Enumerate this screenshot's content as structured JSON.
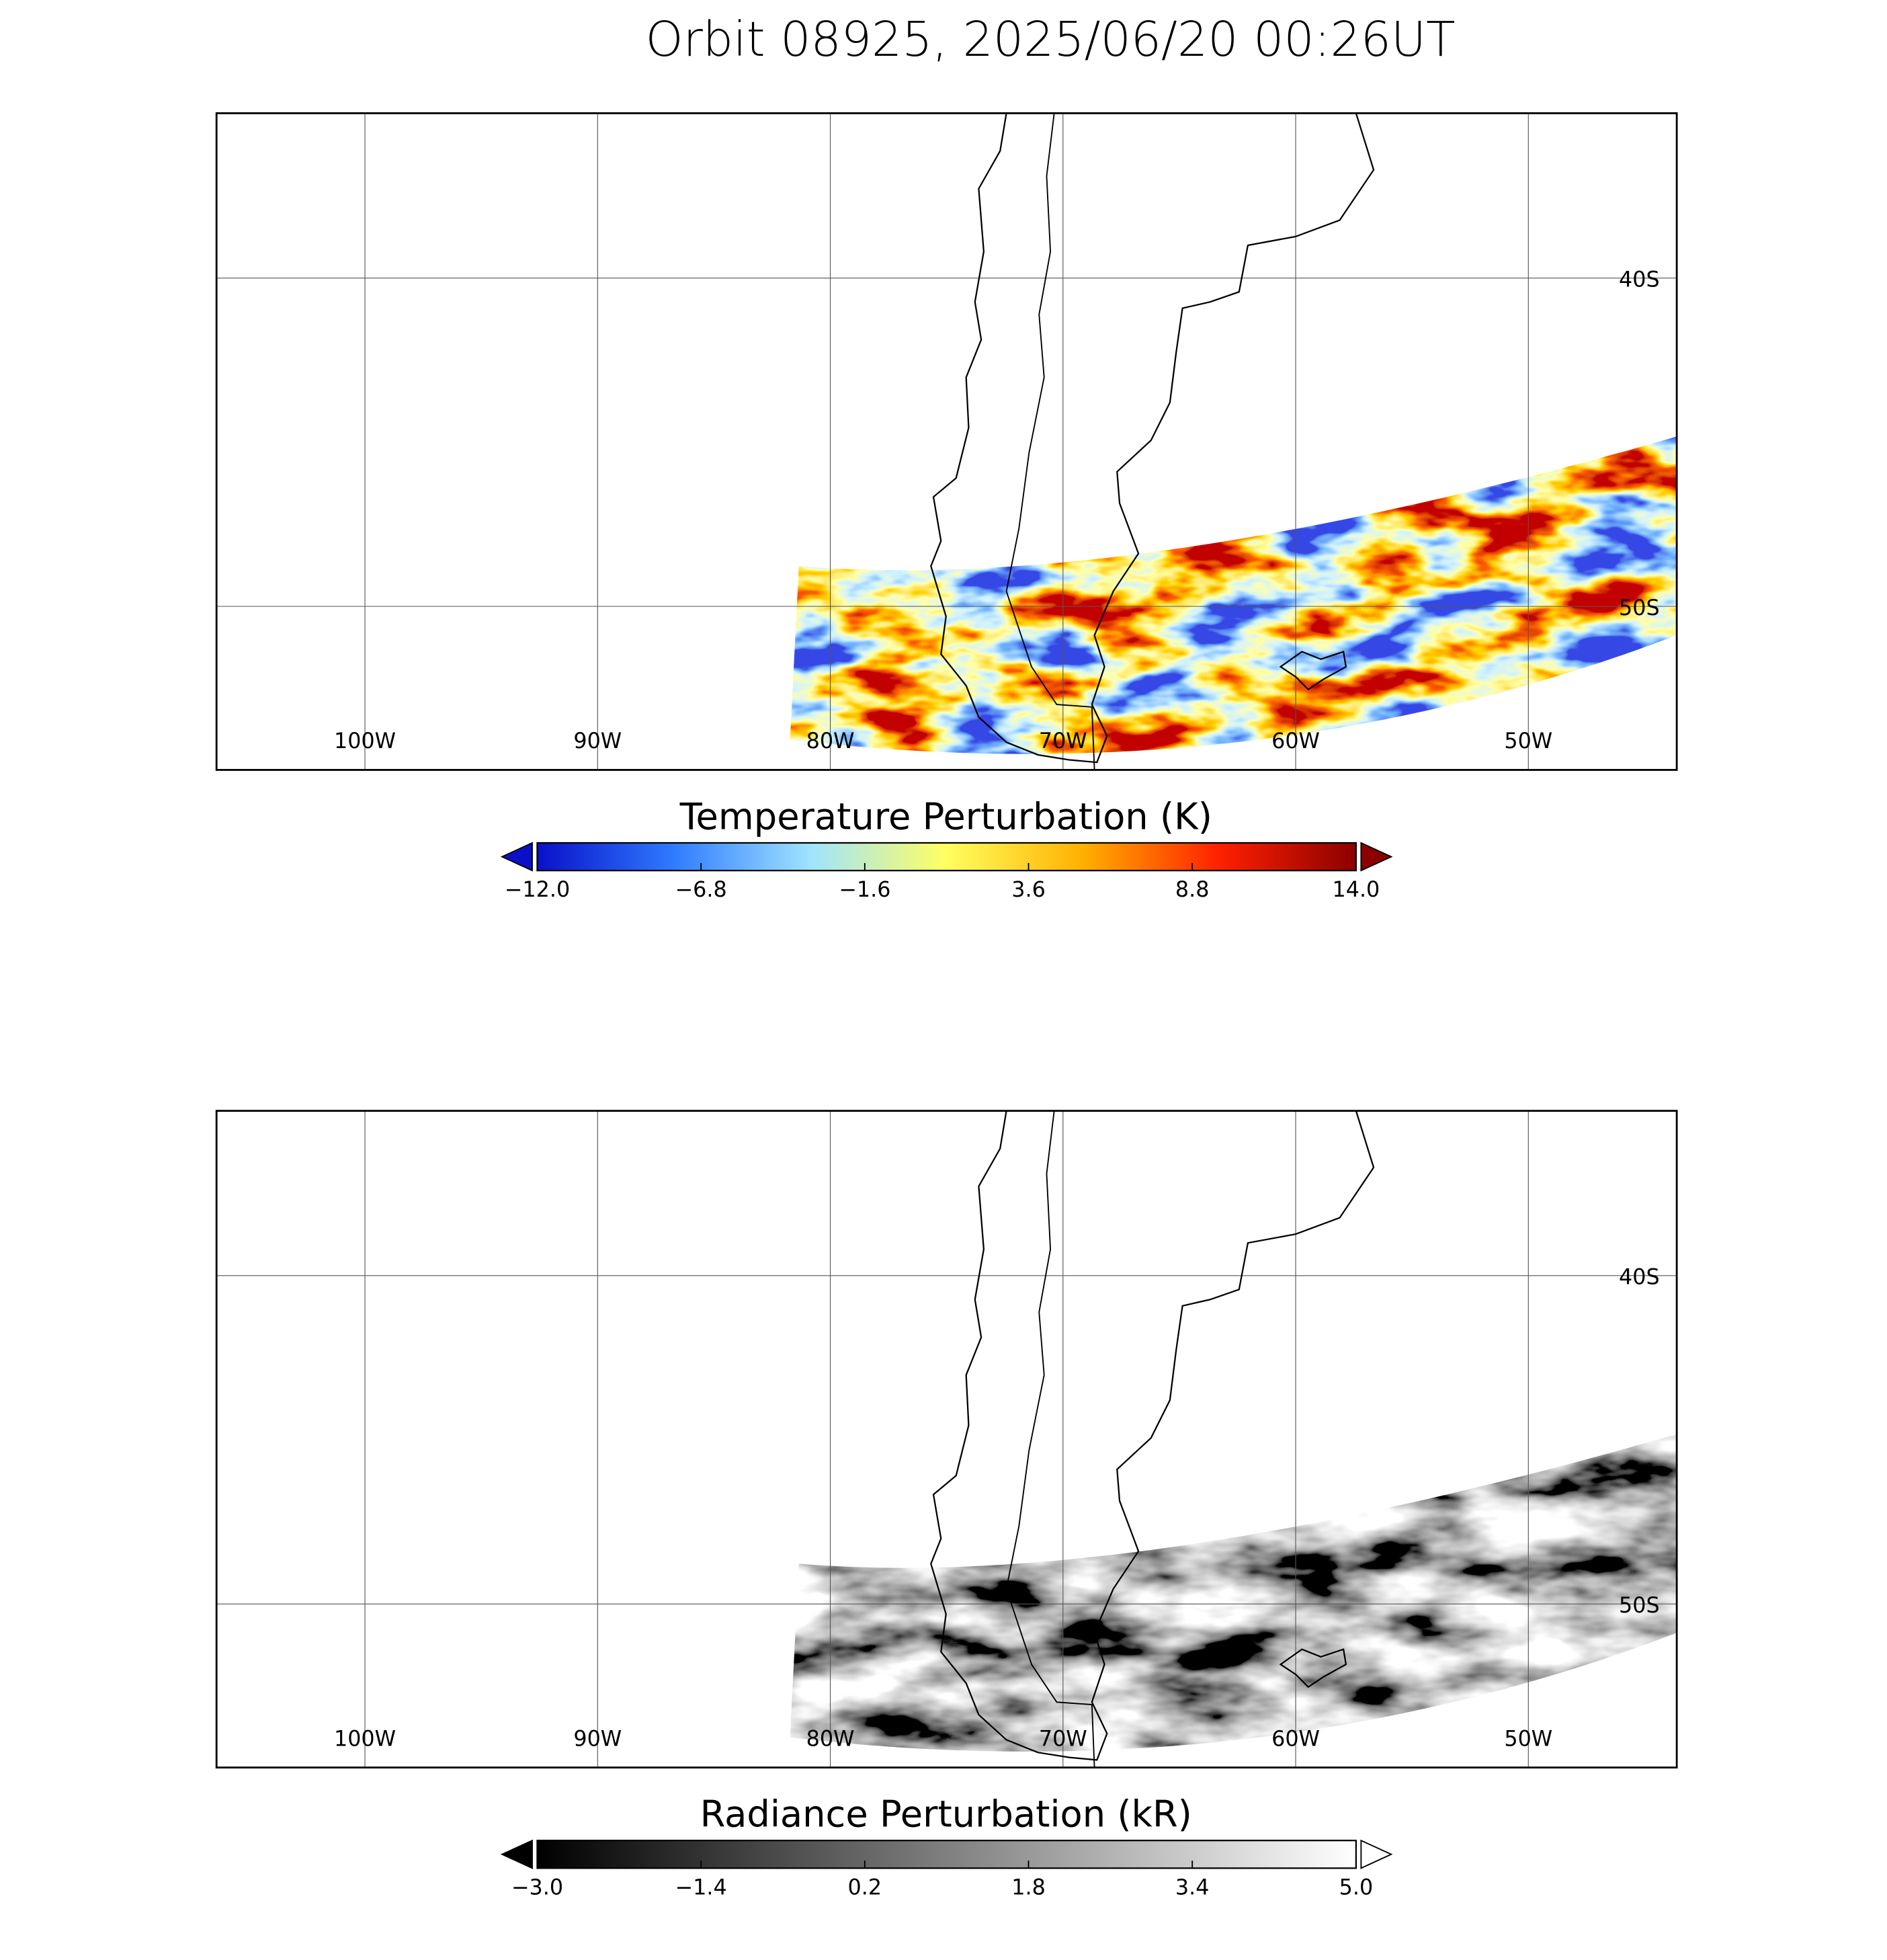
{
  "title": "Orbit 08925, 2025/06/20 00:26UT",
  "panels": [
    {
      "lon_ticks": [
        {
          "value": -100,
          "label": "100W"
        },
        {
          "value": -90,
          "label": "90W"
        },
        {
          "value": -80,
          "label": "80W"
        },
        {
          "value": -70,
          "label": "70W"
        },
        {
          "value": -60,
          "label": "60W"
        },
        {
          "value": -50,
          "label": "50W"
        }
      ],
      "lat_ticks": [
        {
          "value": -40,
          "label": "40S"
        },
        {
          "value": -50,
          "label": "50S"
        }
      ],
      "colorbar": {
        "title": "Temperature Perturbation (K)",
        "range": [
          -12,
          14
        ],
        "colors": [
          "#0a10c8",
          "#2f7bff",
          "#9fe3ff",
          "#ffff60",
          "#ffb000",
          "#ff2000",
          "#8c0000"
        ],
        "ticks": [
          {
            "value": -12,
            "label": "−12.0"
          },
          {
            "value": -6.8,
            "label": "−6.8"
          },
          {
            "value": -1.6,
            "label": "−1.6"
          },
          {
            "value": 3.6,
            "label": "3.6"
          },
          {
            "value": 8.8,
            "label": "8.8"
          },
          {
            "value": 14,
            "label": "14.0"
          }
        ]
      }
    },
    {
      "lon_ticks": [
        {
          "value": -100,
          "label": "100W"
        },
        {
          "value": -90,
          "label": "90W"
        },
        {
          "value": -80,
          "label": "80W"
        },
        {
          "value": -70,
          "label": "70W"
        },
        {
          "value": -60,
          "label": "60W"
        },
        {
          "value": -50,
          "label": "50W"
        }
      ],
      "lat_ticks": [
        {
          "value": -40,
          "label": "40S"
        },
        {
          "value": -50,
          "label": "50S"
        }
      ],
      "colorbar": {
        "title": "Radiance Perturbation (kR)",
        "range": [
          -3,
          5
        ],
        "colors": [
          "#000000",
          "#ffffff"
        ],
        "ticks": [
          {
            "value": -3,
            "label": "−3.0"
          },
          {
            "value": -1.4,
            "label": "−1.4"
          },
          {
            "value": 0.2,
            "label": "0.2"
          },
          {
            "value": 1.8,
            "label": "1.8"
          },
          {
            "value": 3.4,
            "label": "3.4"
          },
          {
            "value": 5,
            "label": "5.0"
          }
        ]
      }
    }
  ]
}
